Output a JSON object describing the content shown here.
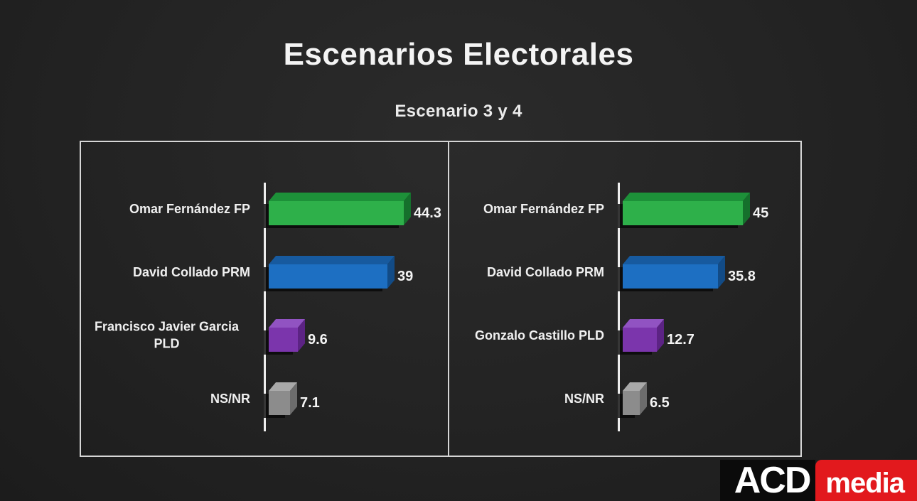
{
  "page": {
    "title": "Escenarios Electorales",
    "subtitle": "Escenario 3 y 4"
  },
  "chart_data": {
    "type": "bar",
    "orientation": "horizontal",
    "title": "Escenarios Electorales",
    "subtitle": "Escenario 3 y 4",
    "grid": false,
    "legend": "none",
    "value_axis_shown": false,
    "value_labels_shown": true,
    "panels": [
      {
        "categories": [
          "Omar Fernández FP",
          "David Collado PRM",
          "Francisco Javier Garcia PLD",
          "NS/NR"
        ],
        "values": [
          44.3,
          39,
          9.6,
          7.1
        ],
        "value_labels": [
          "44.3",
          "39",
          "9.6",
          "7.1"
        ]
      },
      {
        "categories": [
          "Omar Fernández FP",
          "David Collado PRM",
          "Gonzalo Castillo PLD",
          "NS/NR"
        ],
        "values": [
          45,
          35.8,
          12.7,
          6.5
        ],
        "value_labels": [
          "45",
          "35.8",
          "12.7",
          "6.5"
        ]
      }
    ],
    "bar_colors": [
      {
        "name": "green",
        "front": "#2eb04a",
        "top": "#1d9139",
        "side": "#15702c"
      },
      {
        "name": "blue",
        "front": "#1d6fc2",
        "top": "#175a9f",
        "side": "#124b86"
      },
      {
        "name": "purple",
        "front": "#7b35ac",
        "top": "#9153c2",
        "side": "#5c2384"
      },
      {
        "name": "gray",
        "front": "#8c8c8c",
        "top": "#a9a9a9",
        "side": "#6c6c6c"
      }
    ],
    "colors": {
      "background": "#232323",
      "panel_border": "#d6d6d6",
      "axis_line": "#ededed",
      "text": "#f4f4f4"
    }
  },
  "logo": {
    "part1": "ACD",
    "part2": "media",
    "part1_bg": "#0b0b0b",
    "part2_bg": "#e2191d"
  }
}
